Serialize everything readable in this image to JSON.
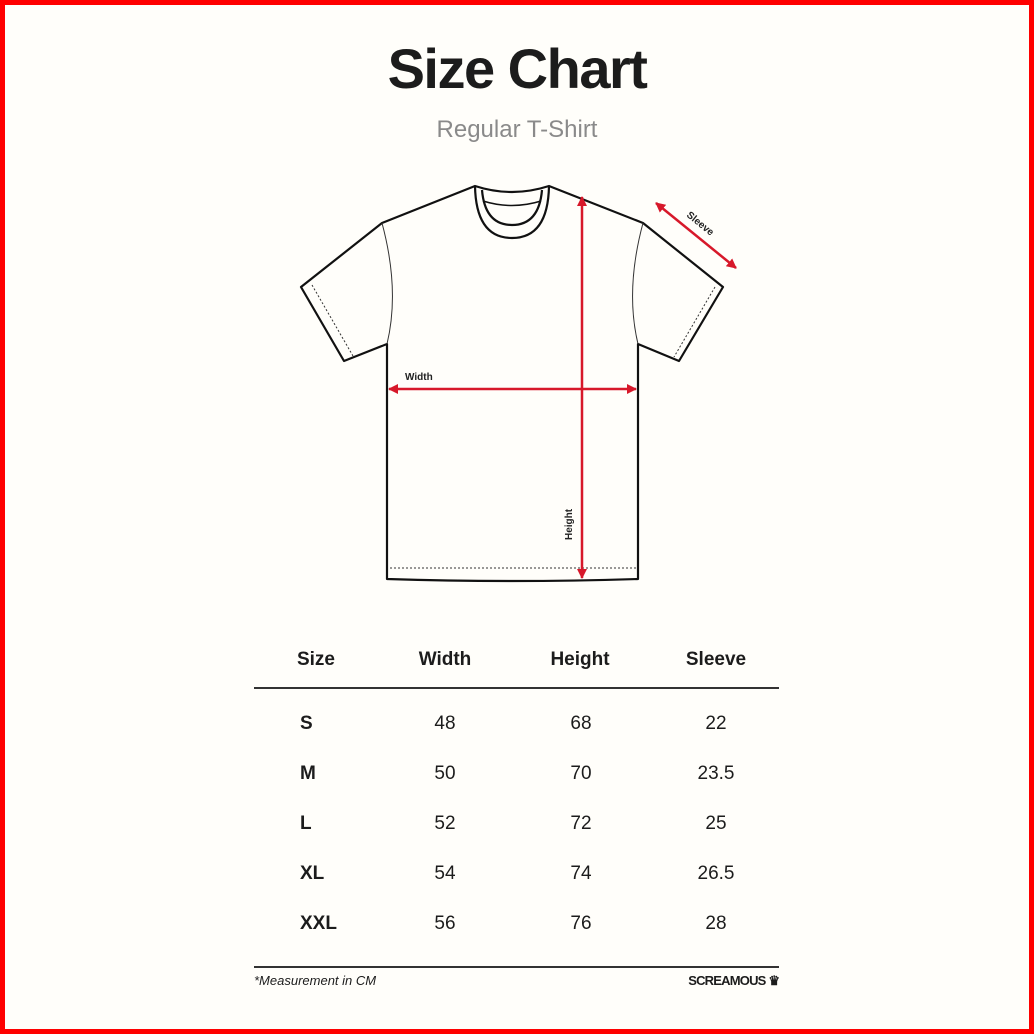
{
  "title": "Size Chart",
  "subtitle": "Regular T-Shirt",
  "diagram": {
    "width_label": "Width",
    "height_label": "Height",
    "sleeve_label": "Sleeve",
    "arrow_color": "#d7182a"
  },
  "table": {
    "headers": [
      "Size",
      "Width",
      "Height",
      "Sleeve"
    ],
    "rows": [
      [
        "S",
        "48",
        "68",
        "22"
      ],
      [
        "M",
        "50",
        "70",
        "23.5"
      ],
      [
        "L",
        "52",
        "72",
        "25"
      ],
      [
        "XL",
        "54",
        "74",
        "26.5"
      ],
      [
        "XXL",
        "56",
        "76",
        "28"
      ]
    ]
  },
  "footnote": "*Measurement in CM",
  "brand": "SCREAMOUS",
  "border_color": "#ff0000"
}
